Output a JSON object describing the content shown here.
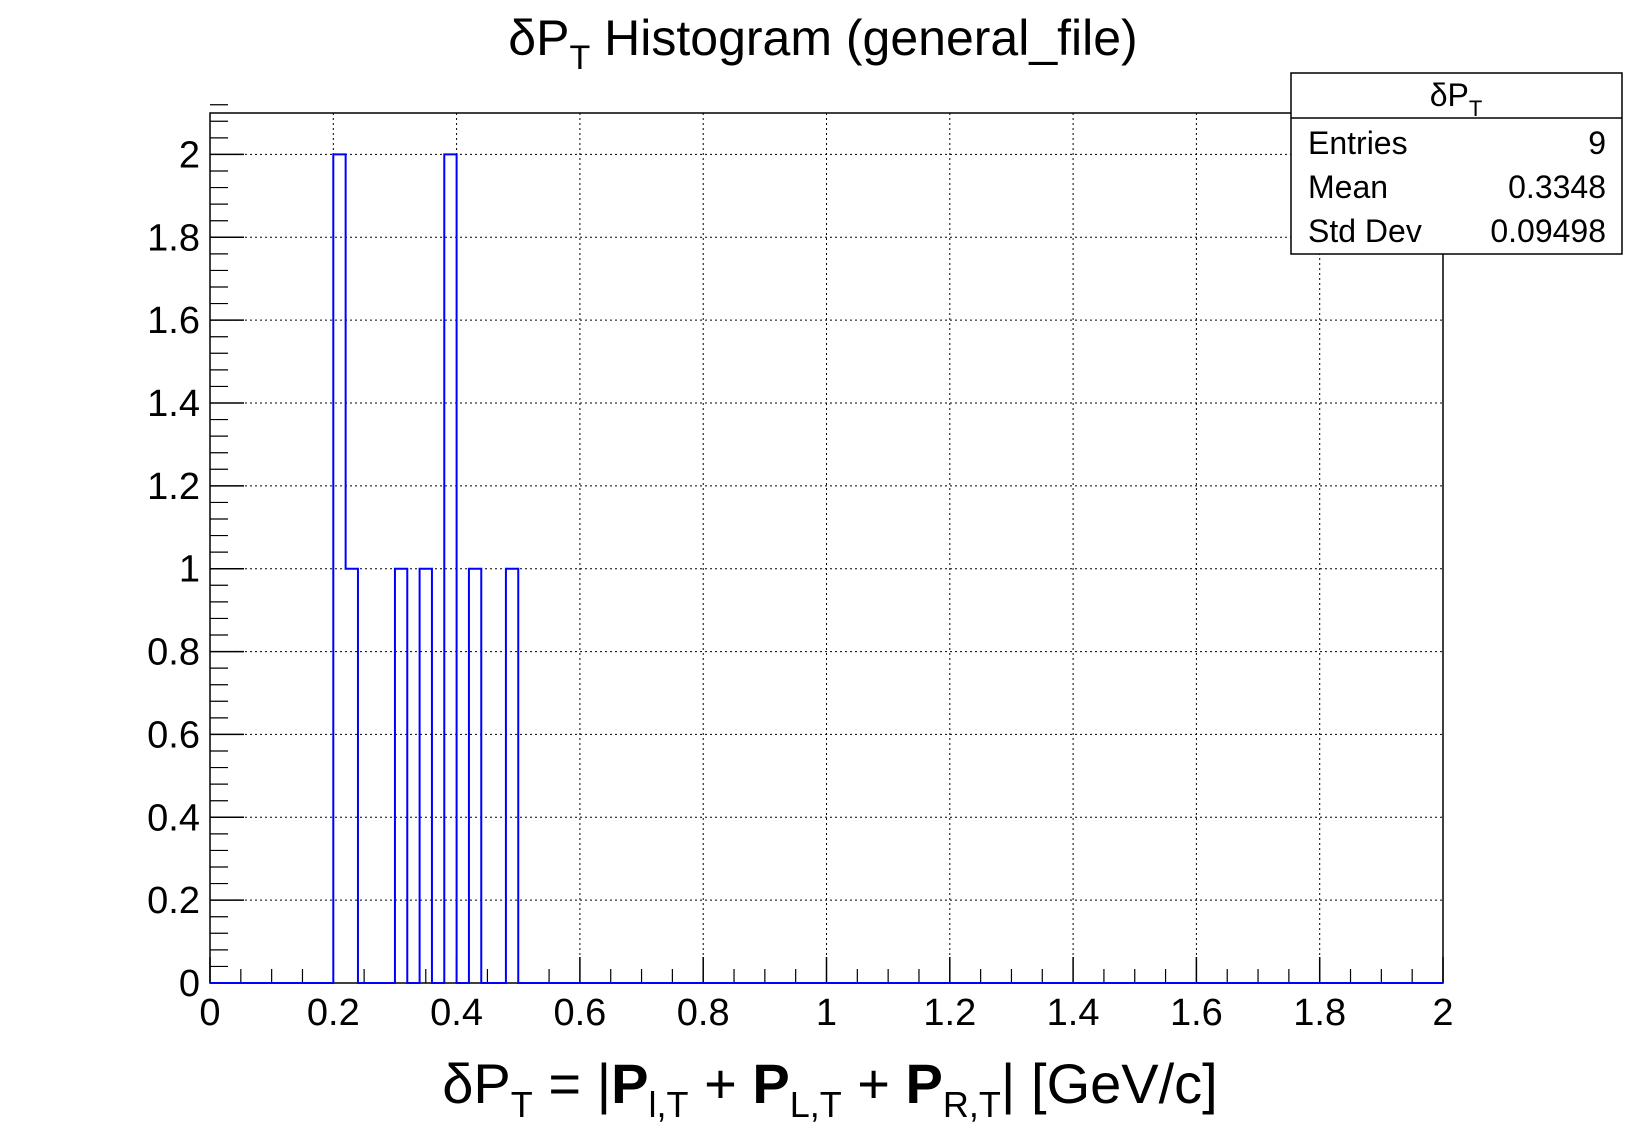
{
  "title": {
    "prefix": "δP",
    "sub": "T",
    "rest": " Histogram (general_file)"
  },
  "stats_box": {
    "header_prefix": "δP",
    "header_sub": "T",
    "rows": [
      {
        "label": "Entries",
        "value": "9"
      },
      {
        "label": "Mean",
        "value": "0.3348"
      },
      {
        "label": "Std Dev",
        "value": "0.09498"
      }
    ]
  },
  "colors": {
    "histogram": "#0000ff",
    "axis": "#000000",
    "grid": "#000000",
    "background": "#ffffff"
  },
  "chart_data": {
    "type": "bar",
    "style": "step-histogram",
    "title": "δPT Histogram (general_file)",
    "xlabel": "δPT = |Pl,T + PL,T + PR,T| [GeV/c]",
    "ylabel": "",
    "xlim": [
      0,
      2
    ],
    "ylim": [
      0,
      2.1
    ],
    "grid": true,
    "legend": "top-right",
    "bin_width": 0.02,
    "x_ticks": [
      "0",
      "0.2",
      "0.4",
      "0.6",
      "0.8",
      "1",
      "1.2",
      "1.4",
      "1.6",
      "1.8",
      "2"
    ],
    "y_ticks": [
      "0",
      "0.2",
      "0.4",
      "0.6",
      "0.8",
      "1",
      "1.2",
      "1.4",
      "1.6",
      "1.8",
      "2"
    ],
    "series": [
      {
        "bins": [
          {
            "x_low": 0.2,
            "x_high": 0.22,
            "count": 2
          },
          {
            "x_low": 0.22,
            "x_high": 0.24,
            "count": 1
          },
          {
            "x_low": 0.3,
            "x_high": 0.32,
            "count": 1
          },
          {
            "x_low": 0.34,
            "x_high": 0.36,
            "count": 1
          },
          {
            "x_low": 0.38,
            "x_high": 0.4,
            "count": 2
          },
          {
            "x_low": 0.42,
            "x_high": 0.44,
            "count": 1
          },
          {
            "x_low": 0.48,
            "x_high": 0.5,
            "count": 1
          }
        ]
      }
    ]
  }
}
